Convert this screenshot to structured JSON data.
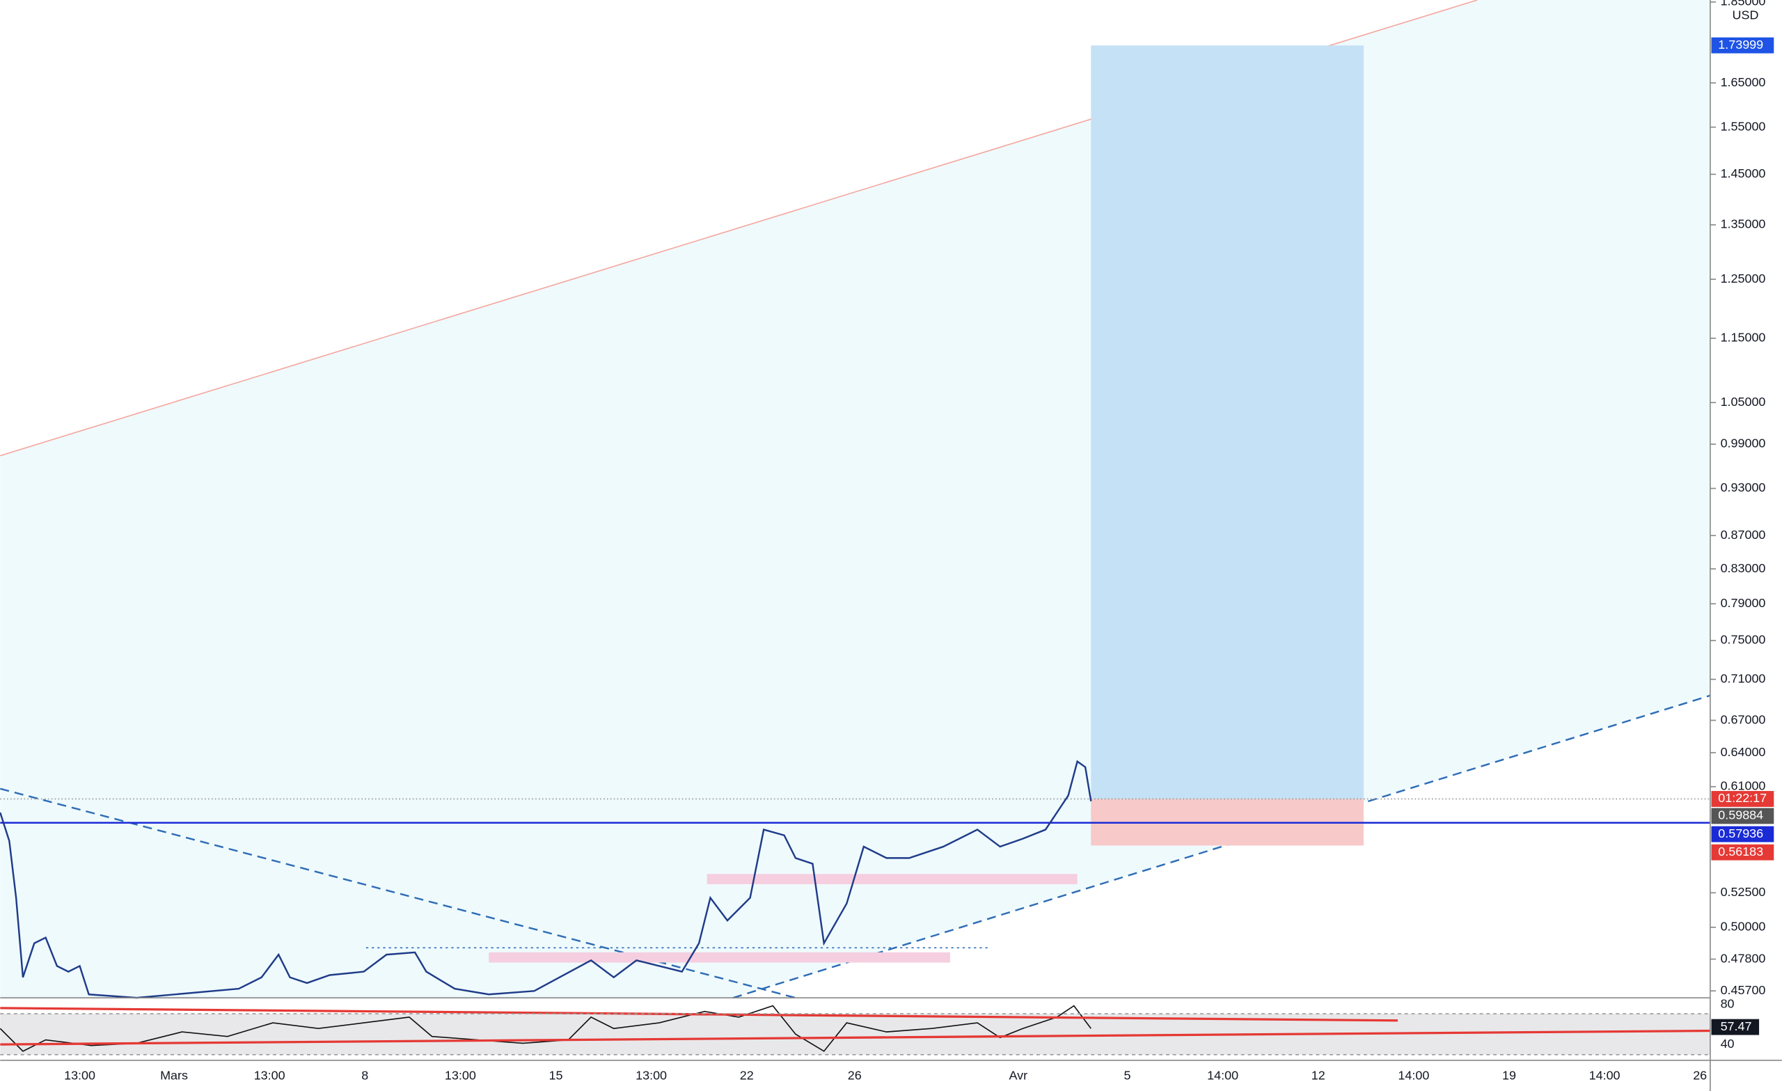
{
  "price_axis": {
    "unit": "USD",
    "log_scale": true,
    "ticks": [
      {
        "value": 1.85,
        "label": "1.85000"
      },
      {
        "value": 1.65,
        "label": "1.65000"
      },
      {
        "value": 1.55,
        "label": "1.55000"
      },
      {
        "value": 1.45,
        "label": "1.45000"
      },
      {
        "value": 1.35,
        "label": "1.35000"
      },
      {
        "value": 1.25,
        "label": "1.25000"
      },
      {
        "value": 1.15,
        "label": "1.15000"
      },
      {
        "value": 1.05,
        "label": "1.05000"
      },
      {
        "value": 0.99,
        "label": "0.99000"
      },
      {
        "value": 0.93,
        "label": "0.93000"
      },
      {
        "value": 0.87,
        "label": "0.87000"
      },
      {
        "value": 0.83,
        "label": "0.83000"
      },
      {
        "value": 0.79,
        "label": "0.79000"
      },
      {
        "value": 0.75,
        "label": "0.75000"
      },
      {
        "value": 0.71,
        "label": "0.71000"
      },
      {
        "value": 0.67,
        "label": "0.67000"
      },
      {
        "value": 0.64,
        "label": "0.64000"
      },
      {
        "value": 0.61,
        "label": "0.61000"
      },
      {
        "value": 0.525,
        "label": "0.52500"
      },
      {
        "value": 0.5,
        "label": "0.50000"
      },
      {
        "value": 0.478,
        "label": "0.47800"
      },
      {
        "value": 0.457,
        "label": "0.45700"
      }
    ]
  },
  "price_tags": [
    {
      "value": 1.73999,
      "label": "1.73999",
      "color": "#1e53e5"
    },
    {
      "value": 0.59884,
      "label": "0.59884",
      "color": "#555555"
    },
    {
      "value": 0.57936,
      "label": "0.57936",
      "color": "#1a2bd6"
    },
    {
      "value": 0.56183,
      "label": "0.56183",
      "color": "#e53935"
    }
  ],
  "countdown": {
    "label": "01:22:17",
    "color": "#e53935"
  },
  "time_axis": [
    "13:00",
    "Mars",
    "13:00",
    "8",
    "13:00",
    "15",
    "13:00",
    "22",
    "26",
    "Avr",
    "5",
    "14:00",
    "12",
    "14:00",
    "19",
    "14:00",
    "26"
  ],
  "rsi": {
    "ticks": [
      80,
      40
    ],
    "value": 57.47
  }
}
